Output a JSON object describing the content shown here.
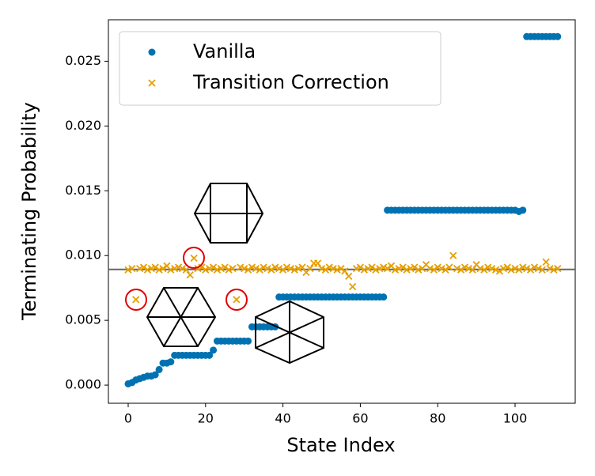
{
  "chart_data": {
    "type": "scatter",
    "xlabel": "State Index",
    "ylabel": "Terminating Probability",
    "xlim": [
      -5.11,
      115.54
    ],
    "ylim": [
      -0.0014,
      0.0282
    ],
    "xticks": [
      0,
      20,
      40,
      60,
      80,
      100
    ],
    "yticks": [
      {
        "value": 0,
        "label": "0.000"
      },
      {
        "value": 0.005,
        "label": "0.005"
      },
      {
        "value": 0.01,
        "label": "0.010"
      },
      {
        "value": 0.015,
        "label": "0.015"
      },
      {
        "value": 0.02,
        "label": "0.020"
      },
      {
        "value": 0.025,
        "label": "0.025"
      }
    ],
    "hline": 0.00893,
    "hline_color": "#666666",
    "legend": "upper left",
    "x": [
      0,
      1,
      2,
      3,
      4,
      5,
      6,
      7,
      8,
      9,
      10,
      11,
      12,
      13,
      14,
      15,
      16,
      17,
      18,
      19,
      20,
      21,
      22,
      23,
      24,
      25,
      26,
      27,
      28,
      29,
      30,
      31,
      32,
      33,
      34,
      35,
      36,
      37,
      38,
      39,
      40,
      41,
      42,
      43,
      44,
      45,
      46,
      47,
      48,
      49,
      50,
      51,
      52,
      53,
      54,
      55,
      56,
      57,
      58,
      59,
      60,
      61,
      62,
      63,
      64,
      65,
      66,
      67,
      68,
      69,
      70,
      71,
      72,
      73,
      74,
      75,
      76,
      77,
      78,
      79,
      80,
      81,
      82,
      83,
      84,
      85,
      86,
      87,
      88,
      89,
      90,
      91,
      92,
      93,
      94,
      95,
      96,
      97,
      98,
      99,
      100,
      101,
      102,
      103,
      104,
      105,
      106,
      107,
      108,
      109,
      110,
      111
    ],
    "series": [
      {
        "name": "Vanilla",
        "color": "#0072b2",
        "marker": "o",
        "values": [
          0.0001,
          0.0002,
          0.0004,
          0.0005,
          0.0006,
          0.0007,
          0.0007,
          0.0008,
          0.0012,
          0.0017,
          0.0017,
          0.0018,
          0.0023,
          0.0023,
          0.0023,
          0.0023,
          0.0023,
          0.0023,
          0.0023,
          0.0023,
          0.0023,
          0.0023,
          0.0027,
          0.0034,
          0.0034,
          0.0034,
          0.0034,
          0.0034,
          0.0034,
          0.0034,
          0.0034,
          0.0034,
          0.0045,
          0.0045,
          0.0045,
          0.0045,
          0.0045,
          0.0045,
          0.0045,
          0.0068,
          0.0068,
          0.0068,
          0.0068,
          0.0068,
          0.0068,
          0.0068,
          0.0068,
          0.0068,
          0.0068,
          0.0068,
          0.0068,
          0.0068,
          0.0068,
          0.0068,
          0.0068,
          0.0068,
          0.0068,
          0.0068,
          0.0068,
          0.0068,
          0.0068,
          0.0068,
          0.0068,
          0.0068,
          0.0068,
          0.0068,
          0.0068,
          0.0135,
          0.0135,
          0.0135,
          0.0135,
          0.0135,
          0.0135,
          0.0135,
          0.0135,
          0.0135,
          0.0135,
          0.0135,
          0.0135,
          0.0135,
          0.0135,
          0.0135,
          0.0135,
          0.0135,
          0.0135,
          0.0135,
          0.0135,
          0.0135,
          0.0135,
          0.0135,
          0.0135,
          0.0135,
          0.0135,
          0.0135,
          0.0135,
          0.0135,
          0.0135,
          0.0135,
          0.0135,
          0.0135,
          0.0135,
          0.0134,
          0.0135,
          0.0269,
          0.0269,
          0.0269,
          0.0269,
          0.0269,
          0.0269,
          0.0269,
          0.0269,
          0.0269
        ]
      },
      {
        "name": "Transition Correction",
        "color": "#e69f00",
        "marker": "x",
        "values": [
          0.0089,
          0.009,
          0.0066,
          0.009,
          0.0091,
          0.0089,
          0.009,
          0.0091,
          0.0089,
          0.009,
          0.0092,
          0.0089,
          0.009,
          0.0091,
          0.009,
          0.0089,
          0.0085,
          0.0098,
          0.009,
          0.0091,
          0.0089,
          0.009,
          0.0091,
          0.0089,
          0.009,
          0.0091,
          0.0089,
          0.009,
          0.0066,
          0.0091,
          0.009,
          0.0089,
          0.0091,
          0.009,
          0.0089,
          0.0091,
          0.009,
          0.0089,
          0.0091,
          0.009,
          0.0089,
          0.0091,
          0.009,
          0.0089,
          0.009,
          0.0091,
          0.0087,
          0.009,
          0.0094,
          0.0094,
          0.009,
          0.0089,
          0.0091,
          0.009,
          0.0089,
          0.009,
          0.0088,
          0.0084,
          0.0076,
          0.009,
          0.0091,
          0.0089,
          0.009,
          0.0091,
          0.0089,
          0.009,
          0.0091,
          0.009,
          0.0092,
          0.0089,
          0.009,
          0.0091,
          0.0089,
          0.009,
          0.0091,
          0.0089,
          0.009,
          0.0093,
          0.009,
          0.0089,
          0.0091,
          0.009,
          0.0089,
          0.0091,
          0.01,
          0.009,
          0.0089,
          0.0091,
          0.009,
          0.0089,
          0.0093,
          0.009,
          0.0089,
          0.0091,
          0.009,
          0.0089,
          0.0088,
          0.009,
          0.0091,
          0.0089,
          0.009,
          0.0089,
          0.0091,
          0.009,
          0.0089,
          0.0091,
          0.009,
          0.0089,
          0.0095,
          0.009,
          0.0089,
          0.009
        ]
      }
    ]
  }
}
